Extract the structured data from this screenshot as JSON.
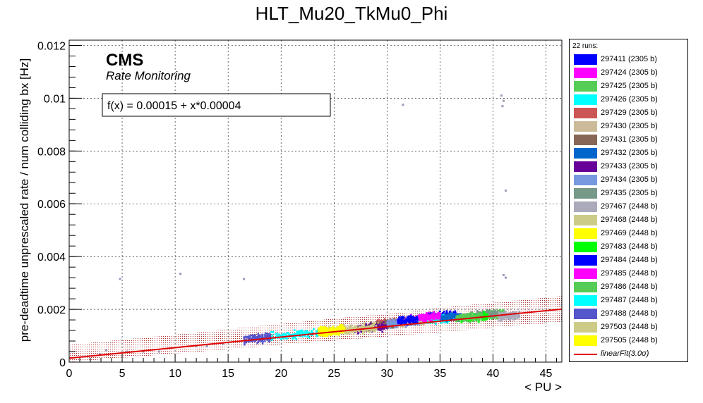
{
  "chart_data": {
    "type": "scatter",
    "title": "HLT_Mu20_TkMu0_Phi",
    "xlabel": "< PU >",
    "ylabel": "pre-deadtime unprescaled rate / num colliding bx [Hz]",
    "xlim": [
      0,
      46.5
    ],
    "ylim": [
      0,
      0.0122
    ],
    "x_ticks": [
      "0",
      "5",
      "10",
      "15",
      "20",
      "25",
      "30",
      "35",
      "40",
      "45"
    ],
    "y_ticks": [
      "0",
      "0.002",
      "0.004",
      "0.006",
      "0.008",
      "0.01",
      "0.012"
    ],
    "grid": true,
    "legend_position": "right",
    "cms_label": "CMS",
    "cms_sublabel": "Rate Monitoring",
    "fit_box_text": "f(x) = 0.00015 + x*0.00004",
    "fit": {
      "intercept": 0.00015,
      "slope": 4e-05,
      "band_sigma": 3.0,
      "color": "#e00000"
    },
    "legend_header": "22 runs:",
    "series": [
      {
        "name": "297411 (2305 b)",
        "color": "#0000ff",
        "x_range": [
          33.5,
          36.5
        ],
        "y_center": 0.00175
      },
      {
        "name": "297424 (2305 b)",
        "color": "#ff00ff",
        "x_range": [
          31.5,
          34.5
        ],
        "y_center": 0.00165
      },
      {
        "name": "297425 (2305 b)",
        "color": "#55cc55",
        "x_range": [
          39.0,
          41.0
        ],
        "y_center": 0.0018
      },
      {
        "name": "297426 (2305 b)",
        "color": "#00ffff",
        "x_range": [
          33.0,
          36.0
        ],
        "y_center": 0.0016
      },
      {
        "name": "297429 (2305 b)",
        "color": "#cc5555",
        "x_range": [
          29.0,
          32.0
        ],
        "y_center": 0.0015
      },
      {
        "name": "297430 (2305 b)",
        "color": "#ccbb99",
        "x_range": [
          26.0,
          34.0
        ],
        "y_center": 0.0014
      },
      {
        "name": "297431 (2305 b)",
        "color": "#886655",
        "x_range": [
          28.0,
          31.0
        ],
        "y_center": 0.0014
      },
      {
        "name": "297432 (2305 b)",
        "color": "#0066cc",
        "x_range": [
          35.0,
          37.0
        ],
        "y_center": 0.0017
      },
      {
        "name": "297433 (2305 b)",
        "color": "#660099",
        "x_range": [
          27.0,
          30.0
        ],
        "y_center": 0.0013
      },
      {
        "name": "297434 (2305 b)",
        "color": "#7799dd",
        "x_range": [
          30.0,
          33.0
        ],
        "y_center": 0.0015
      },
      {
        "name": "297435 (2305 b)",
        "color": "#779988",
        "x_range": [
          37.5,
          40.5
        ],
        "y_center": 0.0018
      },
      {
        "name": "297467 (2448 b)",
        "color": "#aaaabb",
        "x_range": [
          40.5,
          42.5
        ],
        "y_center": 0.00175
      },
      {
        "name": "297468 (2448 b)",
        "color": "#cccc88",
        "x_range": [
          24.0,
          26.0
        ],
        "y_center": 0.0012
      },
      {
        "name": "297469 (2448 b)",
        "color": "#ffff00",
        "x_range": [
          23.5,
          25.5
        ],
        "y_center": 0.00115
      },
      {
        "name": "297483 (2448 b)",
        "color": "#00ff00",
        "x_range": [
          37.0,
          39.5
        ],
        "y_center": 0.0017
      },
      {
        "name": "297484 (2448 b)",
        "color": "#0000ff",
        "x_range": [
          31.0,
          33.0
        ],
        "y_center": 0.0016
      },
      {
        "name": "297485 (2448 b)",
        "color": "#ff00ff",
        "x_range": [
          33.0,
          35.0
        ],
        "y_center": 0.0017
      },
      {
        "name": "297486 (2448 b)",
        "color": "#55cc55",
        "x_range": [
          36.5,
          39.0
        ],
        "y_center": 0.0017
      },
      {
        "name": "297487 (2448 b)",
        "color": "#00ffff",
        "x_range": [
          19.0,
          24.0
        ],
        "y_center": 0.00105
      },
      {
        "name": "297488 (2448 b)",
        "color": "#5555cc",
        "x_range": [
          16.5,
          19.0
        ],
        "y_center": 0.0009
      },
      {
        "name": "297503 (2448 b)",
        "color": "#cccc88",
        "x_range": [
          26.0,
          29.0
        ],
        "y_center": 0.00125
      },
      {
        "name": "297505 (2448 b)",
        "color": "#ffff00",
        "x_range": [
          23.5,
          26.0
        ],
        "y_center": 0.0012
      }
    ],
    "outliers": [
      {
        "x": 4.8,
        "y": 0.00315
      },
      {
        "x": 10.5,
        "y": 0.00335
      },
      {
        "x": 16.5,
        "y": 0.00315
      },
      {
        "x": 31.5,
        "y": 0.00975
      },
      {
        "x": 40.8,
        "y": 0.0101
      },
      {
        "x": 41.0,
        "y": 0.0099
      },
      {
        "x": 40.9,
        "y": 0.0097
      },
      {
        "x": 41.2,
        "y": 0.0065
      },
      {
        "x": 41.0,
        "y": 0.0033
      },
      {
        "x": 41.2,
        "y": 0.0032
      },
      {
        "x": 2.9,
        "y": 0.0003
      },
      {
        "x": 3.5,
        "y": 0.00045
      },
      {
        "x": 5.5,
        "y": 0.0004
      },
      {
        "x": 7.0,
        "y": 0.0004
      },
      {
        "x": 8.5,
        "y": 0.0004
      },
      {
        "x": 13.0,
        "y": 0.0006
      },
      {
        "x": 14.5,
        "y": 0.0007
      },
      {
        "x": 12.0,
        "y": 0.0006
      }
    ],
    "fit_legend_label": "linearFit(3.0σ)"
  }
}
